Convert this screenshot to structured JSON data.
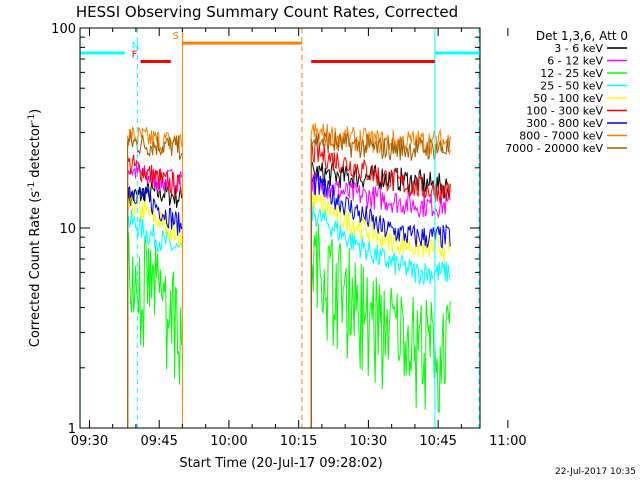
{
  "chart_data": {
    "type": "line",
    "title": "HESSI Observing Summary Count Rates, Corrected",
    "xlabel": "Start Time (20-Jul-17 09:28:02)",
    "ylabel_main": "Corrected Count Rate (s",
    "ylabel_sup1": "-1",
    "ylabel_mid": " detector",
    "ylabel_sup2": "-1",
    "ylabel_end": ")",
    "yscale": "log",
    "ylim": [
      1,
      100
    ],
    "xlim_minutes": [
      -2.03,
      84.0
    ],
    "x_ticks": [
      {
        "label": "09:30",
        "m": 0
      },
      {
        "label": "09:45",
        "m": 15
      },
      {
        "label": "10:00",
        "m": 30
      },
      {
        "label": "10:15",
        "m": 45
      },
      {
        "label": "10:30",
        "m": 60
      },
      {
        "label": "10:45",
        "m": 75
      },
      {
        "label": "11:00",
        "m": 90
      }
    ],
    "y_ticks": [
      {
        "label": "1",
        "v": 1
      },
      {
        "label": "10",
        "v": 10
      },
      {
        "label": "100",
        "v": 100
      }
    ],
    "date_stamp": "22-Jul-2017 10:35",
    "legend": {
      "header": "Det 1,3,6, Att 0",
      "position": "right"
    },
    "series": [
      {
        "name": "3 - 6 keV",
        "color": "#000000",
        "seg1": [
          14,
          15,
          15,
          14
        ],
        "seg2": [
          19,
          18,
          18,
          17,
          16
        ]
      },
      {
        "name": "6 - 12 keV",
        "color": "#ff00ff",
        "seg1": [
          20,
          18,
          17,
          18
        ],
        "seg2": [
          17,
          15,
          14,
          13,
          13
        ]
      },
      {
        "name": "12 - 25 keV",
        "color": "#00ff00",
        "seg1": [
          6.5,
          5.5,
          4.5,
          3.5
        ],
        "seg2": [
          7,
          5,
          3.5,
          2.8,
          2.6
        ]
      },
      {
        "name": "25 - 50 keV",
        "color": "#00ffff",
        "seg1": [
          11,
          9.5,
          8.5,
          7.5
        ],
        "seg2": [
          12,
          9,
          7,
          6,
          6
        ]
      },
      {
        "name": "50 - 100 keV",
        "color": "#ffff00",
        "seg1": [
          13,
          12,
          10.5,
          9
        ],
        "seg2": [
          14,
          11,
          9,
          8,
          8
        ]
      },
      {
        "name": "100 - 300 keV",
        "color": "#ff0000",
        "seg1": [
          21,
          19,
          17,
          16
        ],
        "seg2": [
          24,
          21,
          18,
          16,
          15
        ]
      },
      {
        "name": "300 - 800 keV",
        "color": "#0000ff",
        "seg1": [
          16,
          14,
          12,
          10
        ],
        "seg2": [
          17,
          13,
          10,
          9,
          9
        ]
      },
      {
        "name": "800 - 7000 keV",
        "color": "#ff8000",
        "seg1": [
          29,
          28,
          27,
          27
        ],
        "seg2": [
          30,
          28,
          27,
          27,
          27
        ]
      },
      {
        "name": "7000 - 20000 keV",
        "color": "#a06000",
        "seg1": [
          27,
          26,
          26,
          25
        ],
        "seg2": [
          28,
          26,
          25,
          25,
          25
        ]
      }
    ],
    "data_segments": [
      {
        "start_m": 8.2,
        "end_m": 20.0,
        "series_key": "seg1"
      },
      {
        "start_m": 47.7,
        "end_m": 77.7,
        "series_key": "seg2"
      }
    ],
    "flags": [
      {
        "label": "N",
        "color": "#00ffff",
        "y": 75,
        "start_m": -2.0,
        "end_m": 7.6,
        "dashed_end_m": 10.3
      },
      {
        "label": "F",
        "color": "#ff0000",
        "y": 68,
        "start_m": 11.0,
        "end_m": 17.5
      },
      {
        "label": "S",
        "color": "#ff8000",
        "y": 84,
        "start_m": 20.0,
        "end_m": 45.7,
        "dashed_end_m": 45.7
      },
      {
        "label": "",
        "color": "#ff0000",
        "y": 68,
        "start_m": 47.7,
        "end_m": 74.3
      },
      {
        "label": "",
        "color": "#00ffff",
        "y": 75,
        "start_m": 74.3,
        "end_m": 83.8,
        "dashed_end_m": 83.8
      }
    ],
    "vlines": [
      {
        "m": -2.0,
        "color": "#00ffff",
        "dashed": false
      },
      {
        "m": 10.3,
        "color": "#00ffff",
        "dashed": true
      },
      {
        "m": 20.0,
        "color": "#ff8000",
        "dashed": false
      },
      {
        "m": 45.7,
        "color": "#ff8000",
        "dashed": true
      },
      {
        "m": 74.3,
        "color": "#00ffff",
        "dashed": false
      },
      {
        "m": 83.8,
        "color": "#00ffff",
        "dashed": true
      }
    ]
  }
}
